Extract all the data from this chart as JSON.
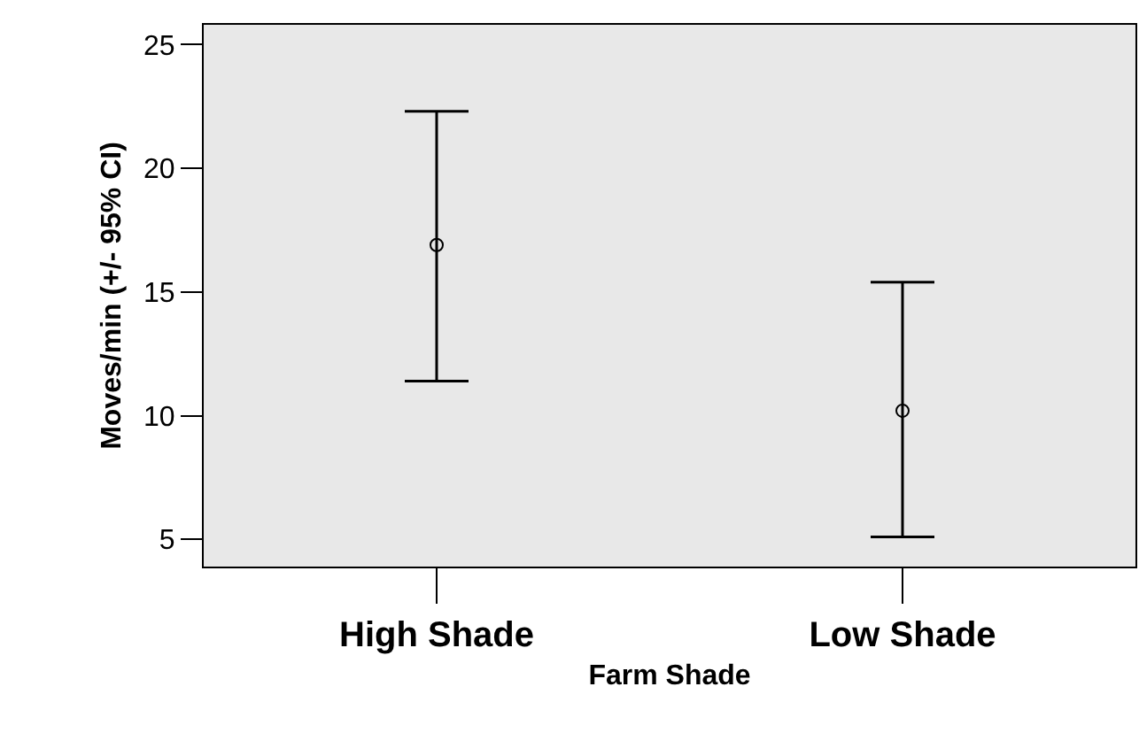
{
  "chart_data": {
    "type": "scatter",
    "xlabel": "Farm Shade",
    "ylabel": "Moves/min (+/- 95% CI)",
    "categories": [
      "High Shade",
      "Low Shade"
    ],
    "values": [
      16.9,
      10.2
    ],
    "errors": [
      [
        11.4,
        22.3
      ],
      [
        5.1,
        15.4
      ]
    ],
    "color": "#000000",
    "marker": "circle",
    "grid": false,
    "legend": false,
    "ylim": [
      3.9,
      25.8
    ],
    "yticks": [
      5,
      10,
      15,
      20,
      25
    ]
  }
}
